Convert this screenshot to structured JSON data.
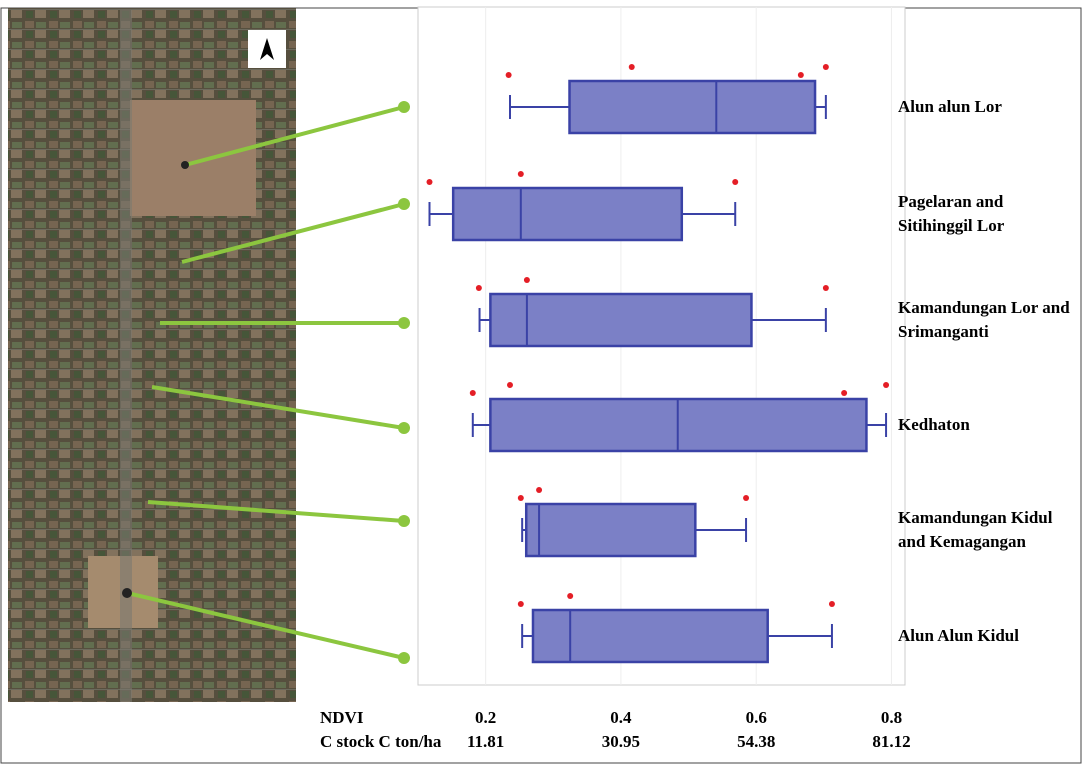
{
  "chart_data": {
    "type": "boxplot",
    "orientation": "horizontal",
    "x_label": "NDVI",
    "xlim": [
      0.1,
      0.82
    ],
    "xticks": [
      0.2,
      0.4,
      0.6,
      0.8
    ],
    "secondary_label": "C stock C ton/ha",
    "secondary_ticks": [
      11.81,
      30.95,
      54.38,
      81.12
    ],
    "color": "#7b80c6",
    "edge_color": "#3a42a6",
    "outlier_color": "#e41e26",
    "categories": [
      "Alun alun Lor",
      "Pagelaran and Sitihinggil Lor",
      "Kamandungan Lor and Srimanganti",
      "Kedhaton",
      "Kamandungan Kidul and Kemagangan",
      "Alun Alun Kidul"
    ],
    "boxes": [
      {
        "min": 0.236,
        "q1": 0.324,
        "median": 0.541,
        "q3": 0.687,
        "max": 0.703,
        "outliers": [
          0.234,
          0.416,
          0.666,
          0.703
        ]
      },
      {
        "min": 0.117,
        "q1": 0.152,
        "median": 0.252,
        "q3": 0.49,
        "max": 0.569,
        "outliers": [
          0.117,
          0.252,
          0.569
        ]
      },
      {
        "min": 0.191,
        "q1": 0.207,
        "median": 0.261,
        "q3": 0.593,
        "max": 0.703,
        "outliers": [
          0.19,
          0.261,
          0.703
        ]
      },
      {
        "min": 0.181,
        "q1": 0.207,
        "median": 0.484,
        "q3": 0.763,
        "max": 0.792,
        "outliers": [
          0.181,
          0.236,
          0.73,
          0.792
        ]
      },
      {
        "min": 0.254,
        "q1": 0.26,
        "median": 0.279,
        "q3": 0.51,
        "max": 0.585,
        "outliers": [
          0.252,
          0.279,
          0.585
        ]
      },
      {
        "min": 0.254,
        "q1": 0.27,
        "median": 0.325,
        "q3": 0.617,
        "max": 0.712,
        "outliers": [
          0.252,
          0.325,
          0.712
        ]
      }
    ]
  }
}
